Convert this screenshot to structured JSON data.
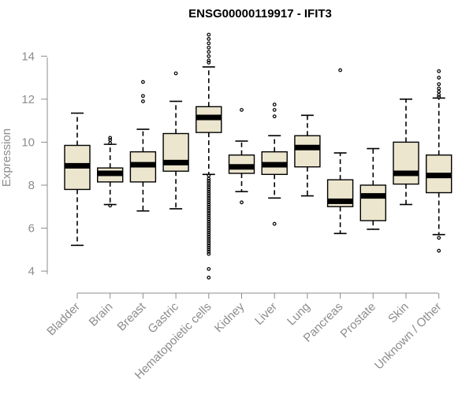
{
  "chart_data": {
    "type": "box",
    "title": "ENSG00000119917 - IFIT3",
    "xlabel": "",
    "ylabel": "Expression",
    "ylim": [
      3.6,
      15.0
    ],
    "yticks": [
      4,
      6,
      8,
      10,
      12,
      14
    ],
    "colors": {
      "box_fill": "#ede6cf",
      "box_stroke": "#000000",
      "axis": "#8c8c8c",
      "title": "#000000"
    },
    "categories": [
      "Bladder",
      "Brain",
      "Breast",
      "Gastric",
      "Hematopoietic cells",
      "Kidney",
      "Liver",
      "Lung",
      "Pancreas",
      "Prostate",
      "Skin",
      "Unknown / Other"
    ],
    "boxes": [
      {
        "category": "Bladder",
        "whisker_low": 5.2,
        "q1": 7.8,
        "median": 8.9,
        "q3": 9.85,
        "whisker_high": 11.35,
        "outliers": []
      },
      {
        "category": "Brain",
        "whisker_low": 7.1,
        "q1": 8.15,
        "median": 8.55,
        "q3": 8.8,
        "whisker_high": 9.9,
        "outliers": [
          10.2,
          10.1,
          9.95,
          7.05
        ]
      },
      {
        "category": "Breast",
        "whisker_low": 6.8,
        "q1": 8.15,
        "median": 8.95,
        "q3": 9.55,
        "whisker_high": 10.6,
        "outliers": [
          12.8,
          12.15,
          11.9
        ]
      },
      {
        "category": "Gastric",
        "whisker_low": 6.9,
        "q1": 8.65,
        "median": 9.05,
        "q3": 10.4,
        "whisker_high": 11.9,
        "outliers": [
          13.2
        ]
      },
      {
        "category": "Hematopoietic cells",
        "whisker_low": 8.5,
        "q1": 10.45,
        "median": 11.15,
        "q3": 11.65,
        "whisker_high": 13.5,
        "outliers": [
          15.0,
          14.8,
          14.6,
          14.4,
          14.2,
          14.0,
          13.8,
          13.7,
          8.45,
          8.3,
          8.2,
          8.1,
          8.0,
          7.9,
          7.8,
          7.7,
          7.6,
          7.5,
          7.4,
          7.3,
          7.2,
          7.1,
          7.0,
          6.9,
          6.8,
          6.7,
          6.6,
          6.5,
          6.4,
          6.3,
          6.2,
          6.1,
          6.0,
          5.9,
          5.8,
          5.7,
          5.6,
          5.5,
          5.4,
          5.3,
          5.2,
          5.1,
          5.0,
          4.9,
          4.8,
          4.1,
          3.7
        ]
      },
      {
        "category": "Kidney",
        "whisker_low": 7.7,
        "q1": 8.55,
        "median": 8.85,
        "q3": 9.4,
        "whisker_high": 10.05,
        "outliers": [
          11.5,
          7.2
        ]
      },
      {
        "category": "Liver",
        "whisker_low": 7.4,
        "q1": 8.5,
        "median": 8.95,
        "q3": 9.55,
        "whisker_high": 10.3,
        "outliers": [
          11.75,
          11.5,
          11.2,
          6.2
        ]
      },
      {
        "category": "Lung",
        "whisker_low": 7.5,
        "q1": 8.85,
        "median": 9.75,
        "q3": 10.3,
        "whisker_high": 11.25,
        "outliers": []
      },
      {
        "category": "Pancreas",
        "whisker_low": 5.75,
        "q1": 7.0,
        "median": 7.25,
        "q3": 8.25,
        "whisker_high": 9.5,
        "outliers": [
          13.35
        ]
      },
      {
        "category": "Prostate",
        "whisker_low": 5.95,
        "q1": 6.35,
        "median": 7.5,
        "q3": 8.0,
        "whisker_high": 9.7,
        "outliers": []
      },
      {
        "category": "Skin",
        "whisker_low": 7.1,
        "q1": 8.05,
        "median": 8.55,
        "q3": 10.0,
        "whisker_high": 12.0,
        "outliers": []
      },
      {
        "category": "Unknown / Other",
        "whisker_low": 5.7,
        "q1": 7.65,
        "median": 8.45,
        "q3": 9.4,
        "whisker_high": 12.05,
        "outliers": [
          13.3,
          13.0,
          12.7,
          12.5,
          12.35,
          12.2,
          12.1,
          5.55,
          4.95
        ]
      }
    ]
  }
}
